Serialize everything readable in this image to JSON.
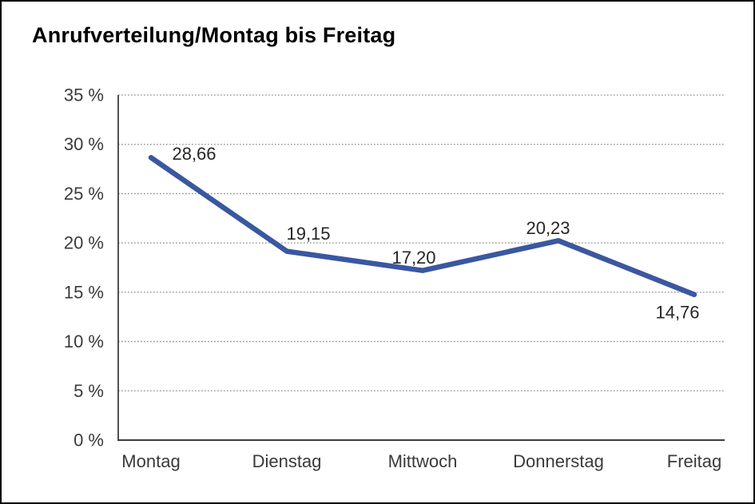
{
  "chart_data": {
    "type": "line",
    "title": "Anrufverteilung/Montag bis Freitag",
    "categories": [
      "Montag",
      "Dienstag",
      "Mittwoch",
      "Donnerstag",
      "Freitag"
    ],
    "values": [
      28.66,
      19.15,
      17.2,
      20.23,
      14.76
    ],
    "value_labels": [
      "28,66",
      "19,15",
      "17,20",
      "20,23",
      "14,76"
    ],
    "yticks": [
      0,
      5,
      10,
      15,
      20,
      25,
      30,
      35
    ],
    "ytick_labels": [
      "0 %",
      "5 %",
      "10 %",
      "15 %",
      "20 %",
      "25 %",
      "30 %",
      "35 %"
    ],
    "ylim": [
      0,
      35
    ],
    "xlabel": "",
    "ylabel": "",
    "grid": "horizontal-dotted",
    "legend": "none",
    "colors": {
      "line": "#3A57A0",
      "data_label": "#262626",
      "tick_label": "#3a3a3a",
      "axis": "#3d3d3d",
      "grid": "#8a8a8a",
      "title": "#000000",
      "background": "#ffffff",
      "border": "#000000"
    }
  }
}
